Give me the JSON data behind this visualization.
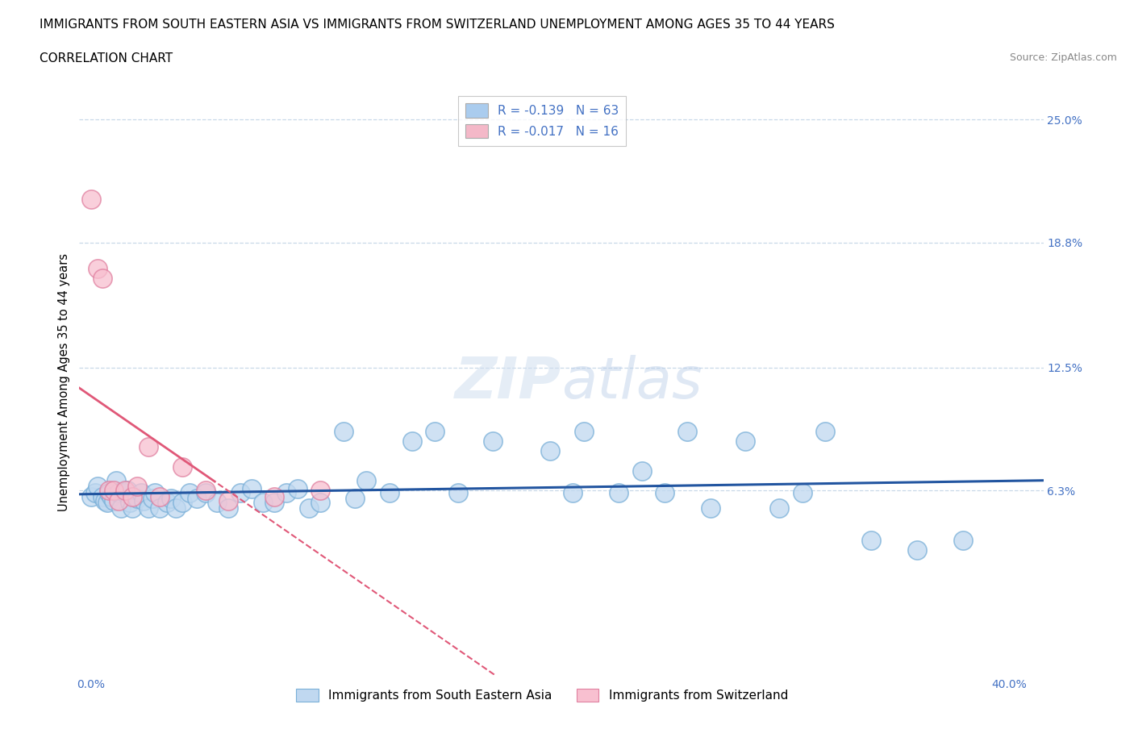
{
  "title_line1": "IMMIGRANTS FROM SOUTH EASTERN ASIA VS IMMIGRANTS FROM SWITZERLAND UNEMPLOYMENT AMONG AGES 35 TO 44 YEARS",
  "title_line2": "CORRELATION CHART",
  "source_text": "Source: ZipAtlas.com",
  "ylabel": "Unemployment Among Ages 35 to 44 years",
  "xlim": [
    -0.005,
    0.415
  ],
  "ylim": [
    -0.03,
    0.265
  ],
  "xticks": [
    0.0,
    0.05,
    0.1,
    0.15,
    0.2,
    0.25,
    0.3,
    0.35,
    0.4
  ],
  "xticklabels": [
    "0.0%",
    "",
    "",
    "",
    "",
    "",
    "",
    "",
    "40.0%"
  ],
  "ytick_labels_right": [
    "6.3%",
    "12.5%",
    "18.8%",
    "25.0%"
  ],
  "ytick_vals_right": [
    0.063,
    0.125,
    0.188,
    0.25
  ],
  "gridline_color": "#c8d8e8",
  "legend_entries": [
    {
      "label": "R = -0.139   N = 63",
      "color": "#aaccee"
    },
    {
      "label": "R = -0.017   N = 16",
      "color": "#f4b8c8"
    }
  ],
  "series_sea": {
    "name": "Immigrants from South Eastern Asia",
    "scatter_facecolor": "#c0d8f0",
    "scatter_edgecolor": "#7ab0d8",
    "trend_color": "#2255a0",
    "x": [
      0.0,
      0.002,
      0.003,
      0.005,
      0.006,
      0.007,
      0.008,
      0.009,
      0.01,
      0.011,
      0.012,
      0.013,
      0.015,
      0.016,
      0.017,
      0.018,
      0.02,
      0.022,
      0.023,
      0.025,
      0.027,
      0.028,
      0.03,
      0.033,
      0.035,
      0.037,
      0.04,
      0.043,
      0.046,
      0.05,
      0.055,
      0.06,
      0.065,
      0.07,
      0.075,
      0.08,
      0.085,
      0.09,
      0.095,
      0.1,
      0.11,
      0.115,
      0.12,
      0.13,
      0.14,
      0.15,
      0.16,
      0.175,
      0.2,
      0.21,
      0.215,
      0.23,
      0.24,
      0.25,
      0.26,
      0.27,
      0.285,
      0.3,
      0.31,
      0.32,
      0.34,
      0.36,
      0.38
    ],
    "y": [
      0.06,
      0.062,
      0.065,
      0.06,
      0.058,
      0.057,
      0.062,
      0.06,
      0.058,
      0.068,
      0.062,
      0.054,
      0.062,
      0.063,
      0.057,
      0.054,
      0.059,
      0.062,
      0.058,
      0.054,
      0.059,
      0.062,
      0.054,
      0.057,
      0.059,
      0.054,
      0.057,
      0.062,
      0.059,
      0.062,
      0.057,
      0.054,
      0.062,
      0.064,
      0.057,
      0.057,
      0.062,
      0.064,
      0.054,
      0.057,
      0.093,
      0.059,
      0.068,
      0.062,
      0.088,
      0.093,
      0.062,
      0.088,
      0.083,
      0.062,
      0.093,
      0.062,
      0.073,
      0.062,
      0.093,
      0.054,
      0.088,
      0.054,
      0.062,
      0.093,
      0.038,
      0.033,
      0.038
    ]
  },
  "series_ch": {
    "name": "Immigrants from Switzerland",
    "scatter_facecolor": "#f8c0d0",
    "scatter_edgecolor": "#e080a0",
    "trend_color": "#e05878",
    "x": [
      0.0,
      0.003,
      0.005,
      0.008,
      0.01,
      0.012,
      0.015,
      0.018,
      0.02,
      0.025,
      0.03,
      0.04,
      0.05,
      0.06,
      0.08,
      0.1
    ],
    "y": [
      0.21,
      0.175,
      0.17,
      0.063,
      0.063,
      0.058,
      0.063,
      0.06,
      0.065,
      0.085,
      0.06,
      0.075,
      0.063,
      0.058,
      0.06,
      0.063
    ]
  },
  "background_color": "#ffffff",
  "title_fontsize": 11,
  "axis_label_fontsize": 10.5,
  "tick_color": "#4472c4"
}
